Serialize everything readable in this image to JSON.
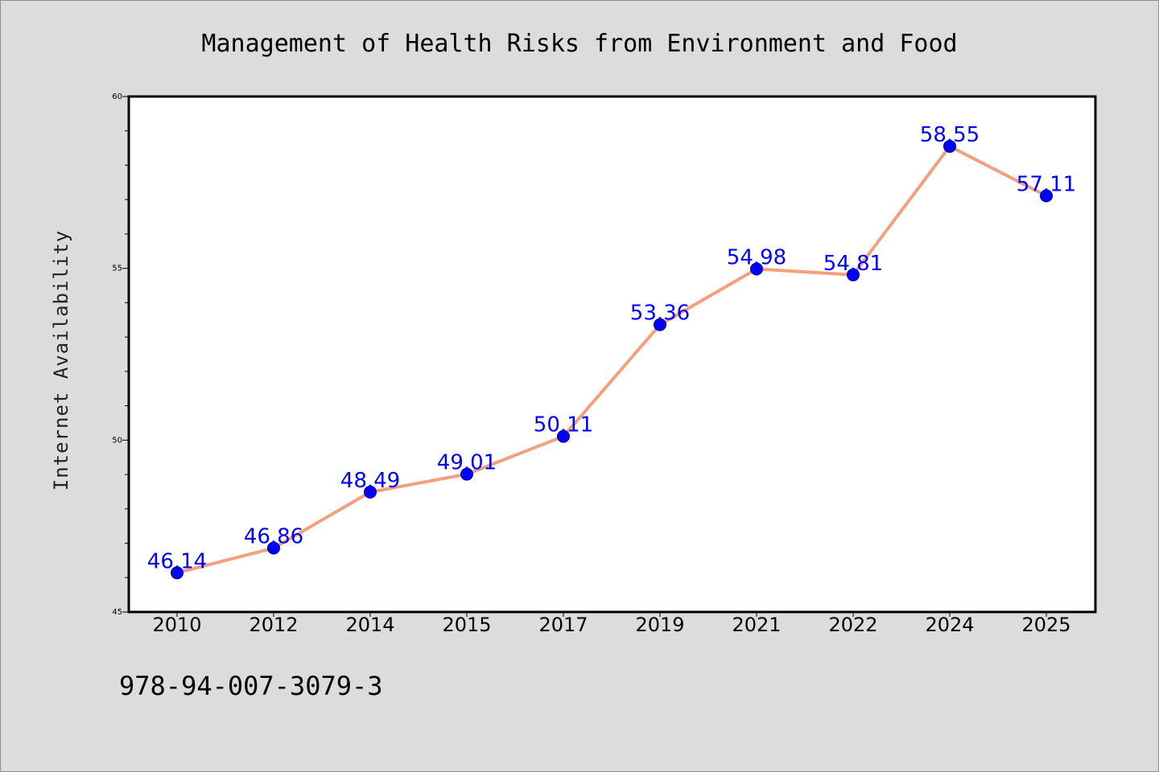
{
  "chart_data": {
    "type": "line",
    "title": "Management of Health Risks from Environment and Food",
    "xlabel": "",
    "ylabel": "Internet Availability",
    "categories": [
      "2010",
      "2012",
      "2014",
      "2015",
      "2017",
      "2019",
      "2021",
      "2022",
      "2024",
      "2025"
    ],
    "series": [
      {
        "values": [
          46.14,
          46.86,
          48.49,
          49.01,
          50.11,
          53.36,
          54.98,
          54.81,
          58.55,
          57.11
        ],
        "labels": [
          "46.14",
          "46.86",
          "48.49",
          "49.01",
          "50.11",
          "53.36",
          "54.98",
          "54.81",
          "58.55",
          "57.11"
        ]
      }
    ],
    "ylim": [
      45,
      60
    ],
    "yticks": [
      "45",
      "50",
      "55",
      "60"
    ],
    "grid": false,
    "legend": "none",
    "colors": {
      "line": "#f4a07f",
      "marker": "#0000ff",
      "marker_edge": "#000080",
      "data_label": "#0000ff",
      "background": "#dcdcdc",
      "plot_area": "#ffffff"
    }
  },
  "footnote": "978-94-007-3079-3"
}
